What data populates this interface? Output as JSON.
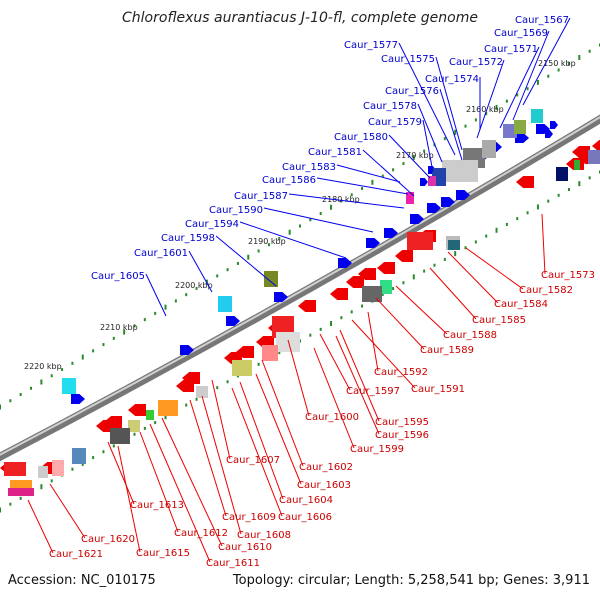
{
  "title": "Chloroflexus aurantiacus J-10-fl, complete genome",
  "accession": "Accession: NC_010175",
  "summary": "Topology: circular; Length: 5,258,541 bp; Genes: 3,911",
  "colors": {
    "forward_genes": "#0000ee",
    "reverse_genes": "#ee0000",
    "backbone": "#888888",
    "tick": "#2a8a2a",
    "label_forward": "#0000cc",
    "label_reverse": "#cc0000"
  },
  "kbp_labels": [
    "2150 kbp",
    "2160 kbp",
    "2170 kbp",
    "2180 kbp",
    "2190 kbp",
    "2200 kbp",
    "2210 kbp",
    "2220 kbp"
  ],
  "forward_labels": [
    "Caur_1567",
    "Caur_1569",
    "Caur_1571",
    "Caur_1572",
    "Caur_1574",
    "Caur_1575",
    "Caur_1576",
    "Caur_1577",
    "Caur_1578",
    "Caur_1579",
    "Caur_1580",
    "Caur_1581",
    "Caur_1583",
    "Caur_1586",
    "Caur_1587",
    "Caur_1590",
    "Caur_1594",
    "Caur_1598",
    "Caur_1601",
    "Caur_1605"
  ],
  "reverse_labels": [
    "Caur_1573",
    "Caur_1582",
    "Caur_1584",
    "Caur_1585",
    "Caur_1588",
    "Caur_1589",
    "Caur_1591",
    "Caur_1592",
    "Caur_1595",
    "Caur_1596",
    "Caur_1597",
    "Caur_1599",
    "Caur_1600",
    "Caur_1602",
    "Caur_1603",
    "Caur_1604",
    "Caur_1606",
    "Caur_1607",
    "Caur_1608",
    "Caur_1609",
    "Caur_1610",
    "Caur_1611",
    "Caur_1612",
    "Caur_1613",
    "Caur_1615",
    "Caur_1620",
    "Caur_1621"
  ]
}
